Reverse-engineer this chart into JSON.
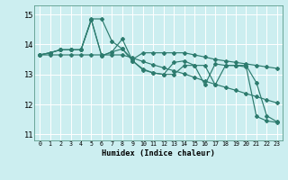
{
  "xlabel": "Humidex (Indice chaleur)",
  "background_color": "#cceef0",
  "grid_color": "#ffffff",
  "line_color": "#2d7b6e",
  "xlim": [
    -0.5,
    23.5
  ],
  "ylim": [
    10.8,
    15.3
  ],
  "yticks": [
    11,
    12,
    13,
    14,
    15
  ],
  "xticks": [
    0,
    1,
    2,
    3,
    4,
    5,
    6,
    7,
    8,
    9,
    10,
    11,
    12,
    13,
    14,
    15,
    16,
    17,
    18,
    19,
    20,
    21,
    22,
    23
  ],
  "series": [
    [
      13.65,
      13.72,
      13.82,
      13.82,
      13.82,
      14.82,
      13.62,
      13.75,
      13.85,
      13.45,
      13.15,
      13.05,
      13.0,
      13.4,
      13.45,
      13.3,
      12.65,
      13.35,
      13.3,
      13.3,
      13.25,
      11.6,
      11.45,
      11.4
    ],
    [
      13.65,
      13.72,
      13.82,
      13.82,
      13.82,
      14.85,
      14.85,
      14.1,
      13.85,
      13.5,
      13.72,
      13.72,
      13.72,
      13.72,
      13.72,
      13.65,
      13.58,
      13.5,
      13.45,
      13.4,
      13.35,
      13.3,
      13.25,
      13.2
    ],
    [
      13.65,
      13.72,
      13.82,
      13.82,
      13.82,
      14.82,
      13.62,
      13.75,
      14.18,
      13.45,
      13.18,
      13.05,
      13.0,
      13.0,
      13.3,
      13.3,
      13.3,
      12.65,
      13.3,
      13.3,
      13.3,
      12.72,
      11.62,
      11.42
    ],
    [
      13.65,
      13.65,
      13.65,
      13.65,
      13.65,
      13.65,
      13.65,
      13.65,
      13.65,
      13.55,
      13.43,
      13.32,
      13.22,
      13.12,
      13.02,
      12.9,
      12.78,
      12.67,
      12.57,
      12.47,
      12.36,
      12.26,
      12.15,
      12.05
    ]
  ]
}
